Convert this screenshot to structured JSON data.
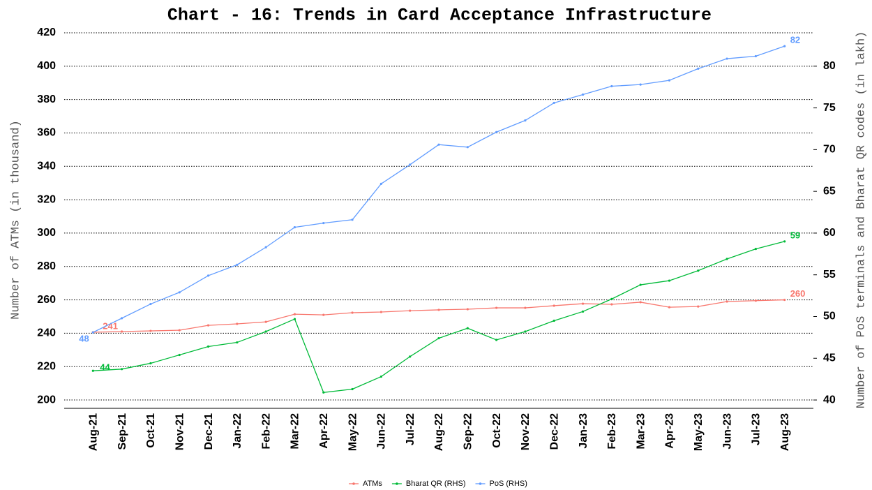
{
  "chart_data": {
    "type": "line",
    "title": "Chart - 16: Trends in Card Acceptance Infrastructure",
    "y_label": "Number of ATMs (in thousand)",
    "y2_label": "Number of PoS terminals and Bharat QR codes (in lakh)",
    "categories": [
      "Aug-21",
      "Sep-21",
      "Oct-21",
      "Nov-21",
      "Dec-21",
      "Jan-22",
      "Feb-22",
      "Mar-22",
      "Apr-22",
      "May-22",
      "Jun-22",
      "Jul-22",
      "Aug-22",
      "Sep-22",
      "Oct-22",
      "Nov-22",
      "Dec-22",
      "Jan-23",
      "Feb-23",
      "Mar-23",
      "Apr-23",
      "May-23",
      "Jun-23",
      "Jul-23",
      "Aug-23"
    ],
    "series": [
      {
        "name": "ATMs",
        "color": "#f8766d",
        "axis": "y",
        "values": [
          240.6,
          241.0,
          241.4,
          241.8,
          244.7,
          245.6,
          246.8,
          251.4,
          251.0,
          252.3,
          252.7,
          253.5,
          254.0,
          254.4,
          255.2,
          255.2,
          256.5,
          257.7,
          257.3,
          258.6,
          255.6,
          256.0,
          259.0,
          259.5,
          260.0
        ],
        "value_labels": [
          "241",
          null,
          null,
          null,
          null,
          null,
          null,
          null,
          null,
          null,
          null,
          null,
          null,
          null,
          null,
          null,
          null,
          null,
          null,
          null,
          null,
          null,
          null,
          null,
          "260"
        ]
      },
      {
        "name": "Bharat QR (RHS)",
        "color": "#00ba38",
        "axis": "y2",
        "values": [
          43.5,
          43.7,
          44.4,
          45.4,
          46.4,
          46.9,
          48.2,
          49.7,
          40.9,
          41.3,
          42.8,
          45.2,
          47.4,
          48.6,
          47.2,
          48.2,
          49.5,
          50.6,
          52.1,
          53.8,
          54.3,
          55.5,
          56.9,
          58.1,
          59.0
        ],
        "value_labels": [
          "44",
          null,
          null,
          null,
          null,
          null,
          null,
          null,
          null,
          null,
          null,
          null,
          null,
          null,
          null,
          null,
          null,
          null,
          null,
          null,
          null,
          null,
          null,
          null,
          "59"
        ]
      },
      {
        "name": "PoS (RHS)",
        "color": "#619cff",
        "axis": "y2",
        "values": [
          48.1,
          49.8,
          51.5,
          52.9,
          54.9,
          56.2,
          58.3,
          60.7,
          61.2,
          61.6,
          65.9,
          68.2,
          70.6,
          70.3,
          72.1,
          73.5,
          75.6,
          76.6,
          77.6,
          77.8,
          78.3,
          79.7,
          80.9,
          81.2,
          82.4
        ],
        "value_labels": [
          "48",
          null,
          null,
          null,
          null,
          null,
          null,
          null,
          null,
          null,
          null,
          null,
          null,
          null,
          null,
          null,
          null,
          null,
          null,
          null,
          null,
          null,
          null,
          null,
          "82"
        ]
      }
    ],
    "ylim": [
      195,
      420
    ],
    "yticks": [
      200,
      220,
      240,
      260,
      280,
      300,
      320,
      340,
      360,
      380,
      400,
      420
    ],
    "y2lim": [
      39,
      84
    ],
    "y2ticks": [
      40,
      45,
      50,
      55,
      60,
      65,
      70,
      75,
      80
    ],
    "grid": true,
    "legend": "bottom"
  }
}
